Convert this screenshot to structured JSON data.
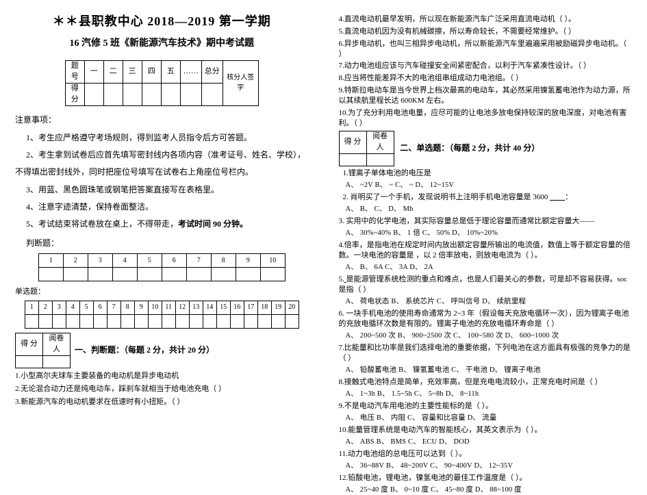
{
  "header": {
    "main_title": "＊＊县职教中心 2018—2019 第一学期",
    "sub_title": "16 汽修 5 班《新能源汽车技术》期中考试题"
  },
  "score_table": {
    "row1_label": "题号",
    "row2_label": "得分",
    "cols": [
      "一",
      "二",
      "三",
      "四",
      "五",
      "……",
      "总分"
    ],
    "signer": "核分人签字"
  },
  "notices": {
    "header": "注意事项：",
    "n1": "1、考生应严格遵守考场规则，得到监考人员指令后方可答题。",
    "n2": "2、考生拿到试卷后应首先填写密封线内各项内容（准考证号、姓名、学校），",
    "n2b": "不得填出密封线外，同时把座位号填写在试卷右上角座位号栏内。",
    "n3": "3、用蓝、黑色圆珠笔或钢笔把答案直接写在表格里。",
    "n4": "4、注意字迹清楚，保持卷面整洁。",
    "n5_a": "5、考试结束将试卷放在桌上，不得带走，",
    "n5_b": "考试时间 90 分钟。"
  },
  "judge_block": {
    "label": "判断题：",
    "nums": [
      "1",
      "2",
      "3",
      "4",
      "5",
      "6",
      "7",
      "8",
      "9",
      "10"
    ]
  },
  "single_block": {
    "label": "单选题：",
    "nums": [
      "1",
      "2",
      "3",
      "4",
      "5",
      "6",
      "7",
      "8",
      "9",
      "10",
      "11",
      "12",
      "13",
      "14",
      "15",
      "16",
      "17",
      "18",
      "19",
      "20"
    ]
  },
  "mini_score": {
    "c1": "得 分",
    "c2": "阅卷人"
  },
  "sec1": {
    "title": "一、判断题：（每题 2 分，共计 20 分）",
    "q1": "1.小型高尔夫球车主要装备的电动机是异步电动机",
    "q2": "2.无论混合动力还是纯电动车，踩刹车就相当于给电池充电（  ）",
    "q3": "3.新能源汽车的电动机要求在低速时有小扭矩。（  ）"
  },
  "right": {
    "j4": "4.直流电动机最早发明，所以现在新能源汽车广泛采用直流电动机（  ）。",
    "j5": "5.直流电动机因为没有机械碳擦，所以寿命较长，不需要经常维护。（  ）",
    "j6": "6.异步电动机，也叫三相异步电动机，所以新能源汽车里遍遍采用被励磁异步电动机。（  ）",
    "j7": "7.动力电池组应该与汽车碰撞安全间紧密配合，以利于汽车紧凑性设计。（  ）",
    "j8": "8.应当将性能差异不大的电池组串组成动力电池组。（  ）",
    "j9": "9.特斯拉电动车是当今世界上档次最高的电动车，其必然采用镍氢蓄电池作为动力源，所以其续航里程长达 600KM 左右。",
    "j10": "10.为了充分利用电池电量，应尽可能的让电池多放电保持较深的放电深度，对电池有害利。（  ）",
    "sec2_title": "二、单选题：（每题 2 分，共计 40 分）",
    "s1": "1.锂离子单体电池的电压是",
    "s1o": "A、 ~2V    B、 ~    C、 ~    D、 12~15V",
    "s2": "2. 肖明买了一个手机，发现说明书上注明手机电池容量是 3600 ",
    "s2u": "        ",
    "s2b": "：",
    "s2o": "A、          B、          C、          D、 Mb",
    "s3": "3. 实用中的化学电池，其实际容量总是低于理论容量而通常比额定容量大——",
    "s3o": "A、 30%~40%    B、 1 倍    C、 50%    D、 10%~20%",
    "s4": "4.倍率，是指电池在规定时间内放出额定容量所输出的电流值，数值上等于额定容量的倍数。一块电池的容量是 ，以 2 倍率放电，则放电电流为（  ）。",
    "s4o": "A、          B、 6A    C、 3A    D、 2A",
    "s5_a": "5.",
    "s5_b": "是能源管理系统检测的重点和难点，也是人们最关心的参数，可是却不容易获得。soc 是指（  ）",
    "s5o": "A、 荷电状态    B、 系统芯片    C、 呼叫信号    D、 续航里程",
    "s6": "6. 一块手机电池的使用寿命通常为 2~3 年（假设每天充放电循环一次），因为锂离子电池的充放电循环次数是有限的。锂离子电池的充放电循环寿命是（  ）",
    "s6o": "A、 200~500 次 B、 900~2500 次 C、 100~580 次 D、 600~1000 次",
    "s7": "7.比能量和比功率是我们选择电池的重要依据，下列电池在这方面具有极强的竞争力的是（  ）",
    "s7o": "A、 铅酸蓄电池  B、 镍氢蓄电池    C、 干电池   D、 锂离子电池",
    "s8": "8.接触式电池特点是简单，充效率高，但是充电电流较小，正常充电时间是（  ）",
    "s8o": "A、 1~3h    B、 1.5~5h    C、 5~8h    D、 8~11h",
    "s9": "9.不是电动汽车用电池的主要性能标的是（  ）。",
    "s9o": "A、 电压    B、 内阻    C、 容量和比容量    D、 流量",
    "s10": "10.能量管理系统是电动汽车的智能核心，其英文表示为（  ）。",
    "s10o": "A、 ABS    B、 BMS    C、 ECU    D、 DOD",
    "s11": "11.动力电池组的总电压可以达到（  ）。",
    "s11o": "A、 36~88V    B、 48~200V    C、 90~400V    D、 12~35V",
    "s12": "12.铅酸电池，锂电池，镍氢电池的最佳工作温度是（  ）。",
    "s12o": "A、 25~40 度  B、 0~10 度    C、 45~80 度    D、 88~100 度"
  }
}
